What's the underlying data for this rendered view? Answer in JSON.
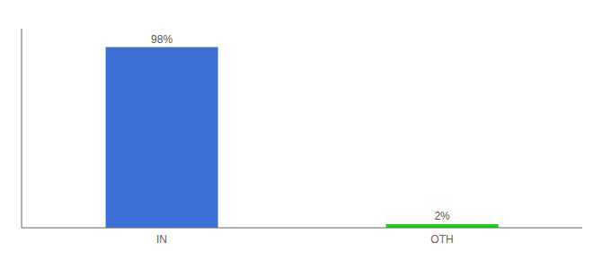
{
  "chart_data": {
    "type": "bar",
    "categories": [
      "IN",
      "OTH"
    ],
    "values": [
      98,
      2
    ],
    "value_labels": [
      "98%",
      "2%"
    ],
    "colors": [
      "#3d6fd6",
      "#22cc22"
    ],
    "ylim": [
      0,
      108
    ],
    "data_labels": true,
    "tick_labels": "x"
  }
}
